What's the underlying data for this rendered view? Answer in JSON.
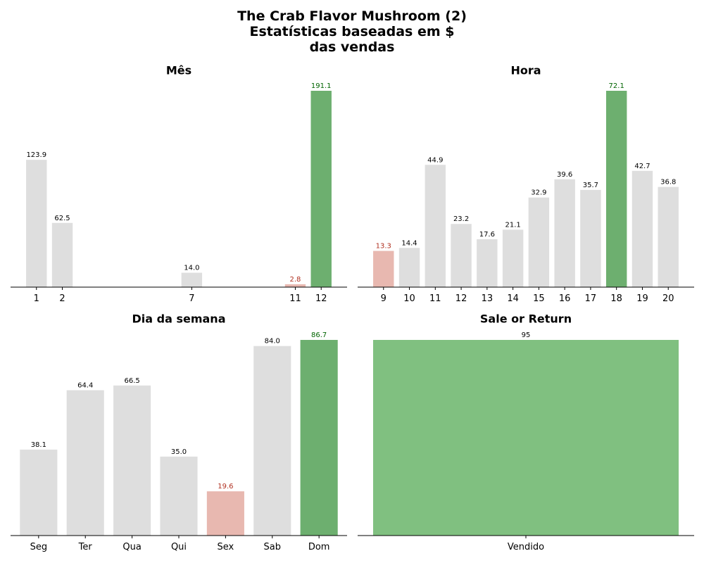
{
  "suptitle": {
    "line1": "The Crab Flavor Mushroom (2)",
    "line2": "Estatísticas baseadas em $",
    "line3": "das vendas"
  },
  "colors": {
    "neutral": "#dedede",
    "max": "#6daf6f",
    "min": "#e8b8b0",
    "max_label": "#006400",
    "min_label": "#b03020",
    "single": "#80c080",
    "axis": "#000000"
  },
  "chart_data": [
    {
      "type": "bar",
      "title": "Mês",
      "axis": "numeric",
      "categories": [
        "1",
        "2",
        "7",
        "11",
        "12"
      ],
      "x": [
        1,
        2,
        7,
        11,
        12
      ],
      "values": [
        123.9,
        62.5,
        14.0,
        2.8,
        191.1
      ],
      "labels": [
        "123.9",
        "62.5",
        "14.0",
        "2.8",
        "191.1"
      ],
      "xlim": [
        0.0,
        13.0
      ],
      "highlight": {
        "max_index": 4,
        "min_index": 3
      }
    },
    {
      "type": "bar",
      "title": "Hora",
      "axis": "numeric",
      "categories": [
        "9",
        "10",
        "11",
        "12",
        "13",
        "14",
        "15",
        "16",
        "17",
        "18",
        "19",
        "20"
      ],
      "x": [
        9,
        10,
        11,
        12,
        13,
        14,
        15,
        16,
        17,
        18,
        19,
        20
      ],
      "values": [
        13.3,
        14.4,
        44.9,
        23.2,
        17.6,
        21.1,
        32.9,
        39.6,
        35.7,
        72.1,
        42.7,
        36.8
      ],
      "labels": [
        "13.3",
        "14.4",
        "44.9",
        "23.2",
        "17.6",
        "21.1",
        "32.9",
        "39.6",
        "35.7",
        "72.1",
        "42.7",
        "36.8"
      ],
      "xlim": [
        8.0,
        21.0
      ],
      "highlight": {
        "max_index": 9,
        "min_index": 0
      }
    },
    {
      "type": "bar",
      "title": "Dia da semana",
      "axis": "categorical",
      "categories": [
        "Seg",
        "Ter",
        "Qua",
        "Qui",
        "Sex",
        "Sab",
        "Dom"
      ],
      "values": [
        38.1,
        64.4,
        66.5,
        35.0,
        19.6,
        84.0,
        86.7
      ],
      "labels": [
        "38.1",
        "64.4",
        "66.5",
        "35.0",
        "19.6",
        "84.0",
        "86.7"
      ],
      "highlight": {
        "max_index": 6,
        "min_index": 4
      }
    },
    {
      "type": "bar",
      "title": "Sale or Return",
      "axis": "categorical",
      "categories": [
        "Vendido"
      ],
      "values": [
        95
      ],
      "labels": [
        "95"
      ],
      "highlight": {
        "single": true
      }
    }
  ]
}
